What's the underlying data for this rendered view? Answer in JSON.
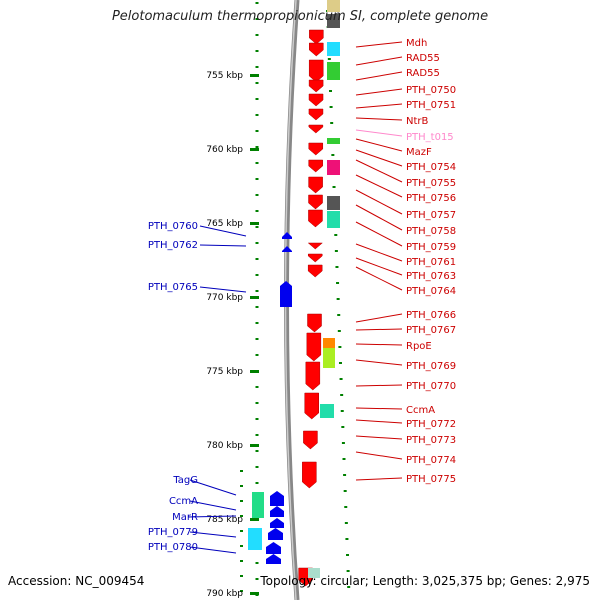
{
  "title": "Pelotomaculum thermopropionicum SI, complete genome",
  "footer": {
    "accession": "Accession: NC_009454",
    "summary": "Topology: circular; Length: 3,025,375 bp; Genes: 2,975"
  },
  "colors": {
    "forward_gene": "#ff0000",
    "reverse_gene": "#0000ee",
    "backbone": "#888888",
    "tick": "#008000",
    "right_label": "#cc0000",
    "left_label": "#0000bb",
    "rna_label": "#ff88cc"
  },
  "ticks": [
    {
      "label": "755 kbp"
    },
    {
      "label": "760 kbp"
    },
    {
      "label": "765 kbp"
    },
    {
      "label": "770 kbp"
    },
    {
      "label": "775 kbp"
    },
    {
      "label": "780 kbp"
    },
    {
      "label": "785 kbp"
    },
    {
      "label": "790 kbp"
    }
  ],
  "right_labels": [
    {
      "text": "Mdh"
    },
    {
      "text": "RAD55"
    },
    {
      "text": "RAD55"
    },
    {
      "text": "PTH_0750"
    },
    {
      "text": "PTH_0751"
    },
    {
      "text": "NtrB"
    },
    {
      "text": "PTH_t015",
      "rna": true
    },
    {
      "text": "MazF"
    },
    {
      "text": "PTH_0754"
    },
    {
      "text": "PTH_0755"
    },
    {
      "text": "PTH_0756"
    },
    {
      "text": "PTH_0757"
    },
    {
      "text": "PTH_0758"
    },
    {
      "text": "PTH_0759"
    },
    {
      "text": "PTH_0761"
    },
    {
      "text": "PTH_0763"
    },
    {
      "text": "PTH_0764"
    },
    {
      "text": "PTH_0766"
    },
    {
      "text": "PTH_0767"
    },
    {
      "text": "RpoE"
    },
    {
      "text": "PTH_0769"
    },
    {
      "text": "PTH_0770"
    },
    {
      "text": "CcmA"
    },
    {
      "text": "PTH_0772"
    },
    {
      "text": "PTH_0773"
    },
    {
      "text": "PTH_0774"
    },
    {
      "text": "PTH_0775"
    }
  ],
  "left_labels": [
    {
      "text": "PTH_0760"
    },
    {
      "text": "PTH_0762"
    },
    {
      "text": "PTH_0765"
    },
    {
      "text": "TagG"
    },
    {
      "text": "CcmA"
    },
    {
      "text": "MarR"
    },
    {
      "text": "PTH_0779"
    },
    {
      "text": "PTH_0780"
    }
  ]
}
